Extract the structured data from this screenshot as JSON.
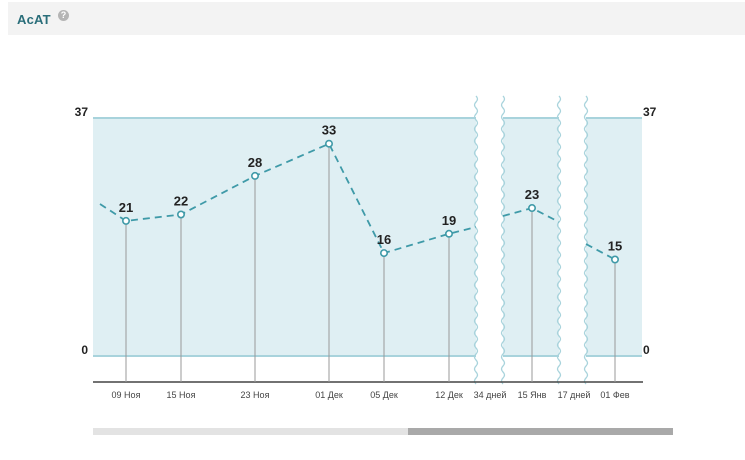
{
  "header": {
    "title": "AcAT",
    "help_icon": "question-circle-icon",
    "help_glyph": "?"
  },
  "colors": {
    "band_fill": "#dfeff3",
    "band_border": "#a8d3dc",
    "line": "#3f9aa8",
    "stem": "#9a9a9a",
    "title": "#2a6e7a"
  },
  "chart_data": {
    "type": "line",
    "title": "",
    "xlabel": "",
    "ylabel": "",
    "ylim": [
      0,
      37
    ],
    "y_axis_labels": {
      "left_top": "37",
      "left_bottom": "0",
      "right_top": "37",
      "right_bottom": "0"
    },
    "line_style": "dashed",
    "grid": false,
    "legend": "none",
    "points": [
      {
        "x": "09 Ноя",
        "y": 21
      },
      {
        "x": "15 Ноя",
        "y": 22
      },
      {
        "x": "23 Ноя",
        "y": 28
      },
      {
        "x": "01 Дек",
        "y": 33
      },
      {
        "x": "05 Дек",
        "y": 16
      },
      {
        "x": "12 Дек",
        "y": 19
      },
      {
        "x": "15 Янв",
        "y": 23
      },
      {
        "x": "01 Фев",
        "y": 15
      }
    ],
    "gaps": [
      {
        "label": "34 дней"
      },
      {
        "label": "17 дней"
      }
    ]
  },
  "scrollbar": {
    "position_fraction": 0.54,
    "visible_fraction": 0.46
  }
}
